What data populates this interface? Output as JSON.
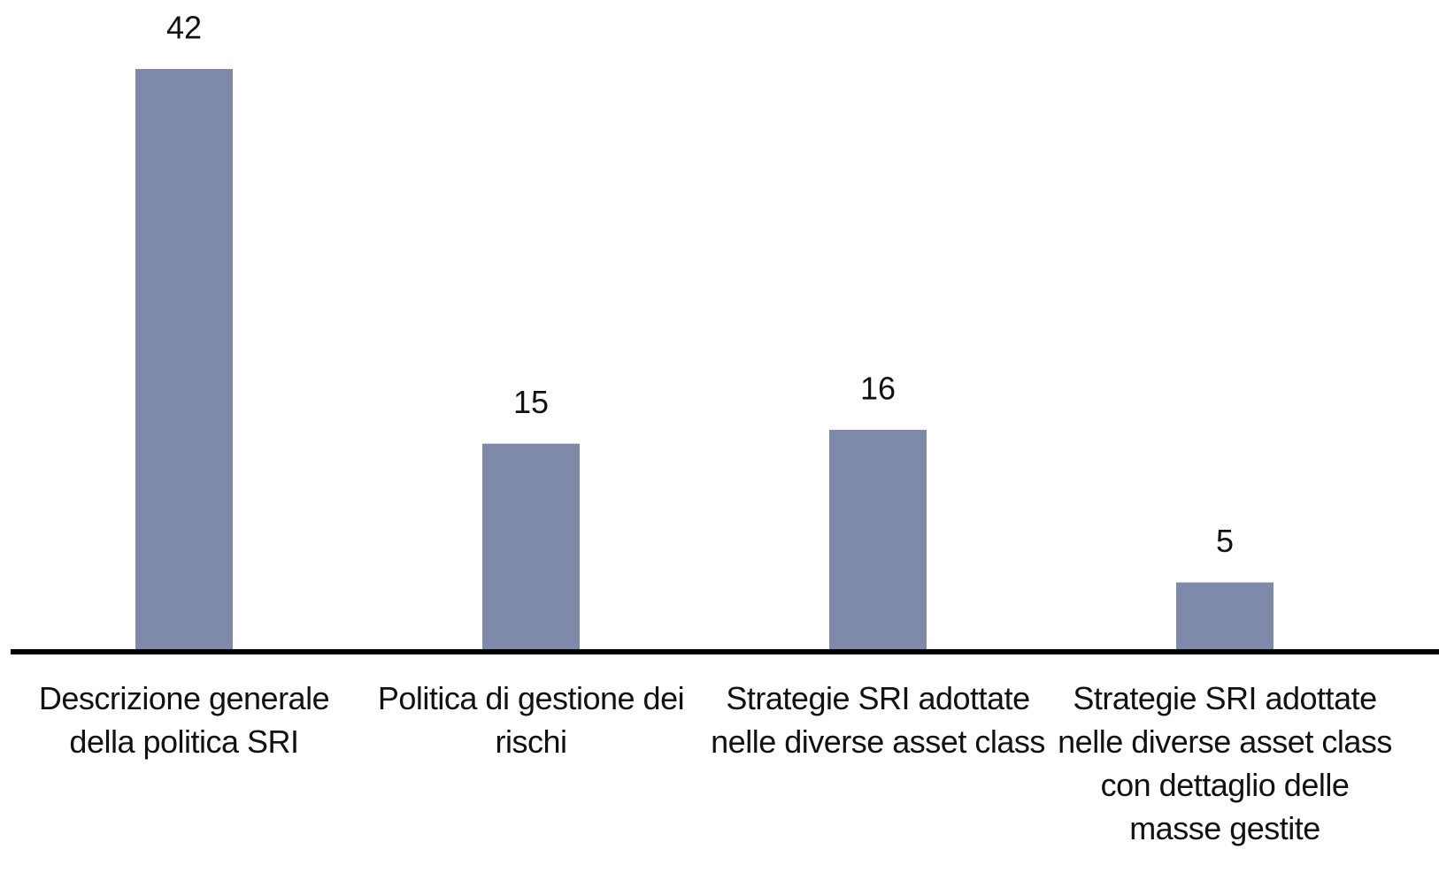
{
  "chart_data": {
    "type": "bar",
    "categories": [
      "Descrizione generale della politica SRI",
      "Politica di gestione dei rischi",
      "Strategie SRI adottate nelle diverse asset class",
      "Strategie SRI adottate nelle diverse asset class con dettaglio delle masse gestite"
    ],
    "values": [
      42,
      15,
      16,
      5
    ],
    "color": "#7f8aab",
    "ylim": [
      0,
      42
    ]
  }
}
